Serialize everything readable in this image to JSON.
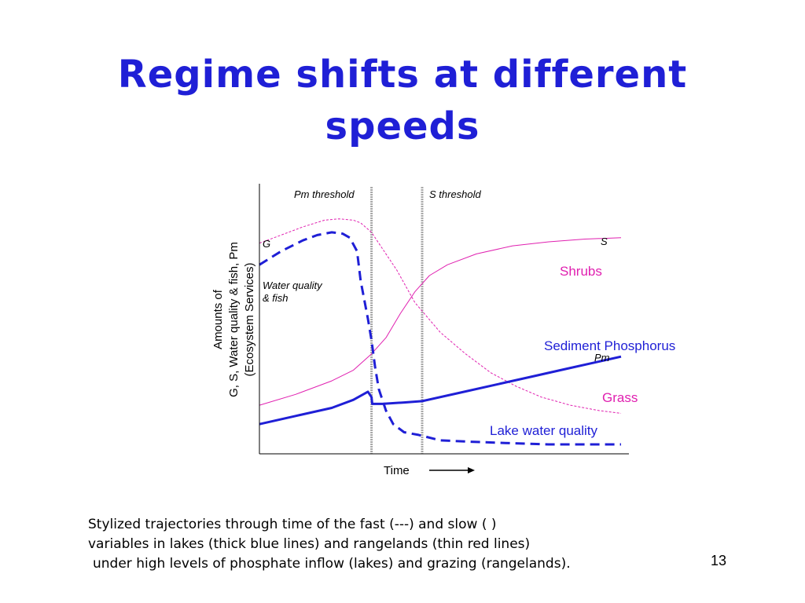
{
  "slide": {
    "title_line1": "Regime shifts at different",
    "title_line2": "speeds",
    "caption_line1": "Stylized trajectories through time of the fast (---) and slow ( )",
    "caption_line2": "variables in lakes (thick blue lines) and rangelands (thin red lines)",
    "caption_line3": "under high levels of phosphate inflow (lakes) and grazing (rangelands).",
    "slide_number": "13"
  },
  "chart_data": {
    "type": "line",
    "title": "",
    "xlabel": "Time",
    "ylabel_lines": [
      "Amounts of",
      "G, S, Water quality & fish, Pm",
      "(Ecosystem Services)"
    ],
    "xlim": [
      0,
      100
    ],
    "ylim": [
      0,
      100
    ],
    "ticks": "none",
    "grid": false,
    "colors": {
      "lake": "#1f1fd6",
      "rangeland": "#e020b0",
      "threshold": "#a8a8a8"
    },
    "thresholds": [
      {
        "label": "Pm threshold",
        "x": 31
      },
      {
        "label": "S threshold",
        "x": 45
      }
    ],
    "series": [
      {
        "name": "G",
        "style": "thin dashed",
        "color": "#e020b0",
        "x": [
          0,
          6,
          12,
          18,
          22,
          26,
          28,
          31,
          34,
          38,
          43,
          50,
          57,
          64,
          71,
          78,
          86,
          94,
          100
        ],
        "y": [
          78,
          81,
          84,
          86.5,
          87,
          86.5,
          85.5,
          82,
          76,
          68,
          56,
          45,
          37,
          30,
          25,
          21,
          18,
          16,
          15
        ]
      },
      {
        "name": "S",
        "style": "thin solid",
        "color": "#e020b0",
        "x": [
          0,
          10,
          20,
          26,
          31,
          35,
          39,
          43,
          47,
          52,
          60,
          70,
          80,
          90,
          100
        ],
        "y": [
          18,
          22,
          27,
          31,
          37,
          43,
          52,
          60,
          66,
          70,
          74,
          77,
          78.5,
          79.5,
          80
        ]
      },
      {
        "name": "Water quality & fish",
        "style": "thick dashed",
        "color": "#1f1fd6",
        "x": [
          0,
          6,
          12,
          16,
          20,
          23,
          25,
          27,
          28,
          30,
          31,
          32,
          33,
          35,
          37,
          40,
          44,
          50,
          58,
          68,
          80,
          90,
          100
        ],
        "y": [
          70,
          75,
          79,
          81,
          82,
          81.5,
          80,
          75,
          64,
          50,
          42,
          32,
          24,
          16,
          11,
          8,
          7,
          5,
          4.5,
          4,
          3.5,
          3.5,
          3.5
        ]
      },
      {
        "name": "Pm",
        "style": "thick solid",
        "color": "#1f1fd6",
        "x": [
          0,
          10,
          20,
          26,
          30,
          31,
          31.2,
          34,
          40,
          45,
          55,
          65,
          75,
          85,
          100
        ],
        "y": [
          11,
          14,
          17,
          20,
          23,
          21,
          18.5,
          18.5,
          19,
          19.5,
          22.5,
          25.5,
          28.5,
          31.5,
          36
        ]
      }
    ],
    "curve_labels": [
      {
        "text": "G",
        "series": "G"
      },
      {
        "text": "S",
        "series": "S"
      },
      {
        "text": "Water quality & fish",
        "series": "Water quality & fish"
      },
      {
        "text": "Pm",
        "series": "Pm"
      }
    ],
    "annotations": [
      {
        "text": "Shrubs",
        "color": "#e020b0"
      },
      {
        "text": "Sediment Phosphorus",
        "color": "#1f1fd6"
      },
      {
        "text": "Grass",
        "color": "#e020b0"
      },
      {
        "text": "Lake water quality",
        "color": "#1f1fd6"
      }
    ]
  }
}
